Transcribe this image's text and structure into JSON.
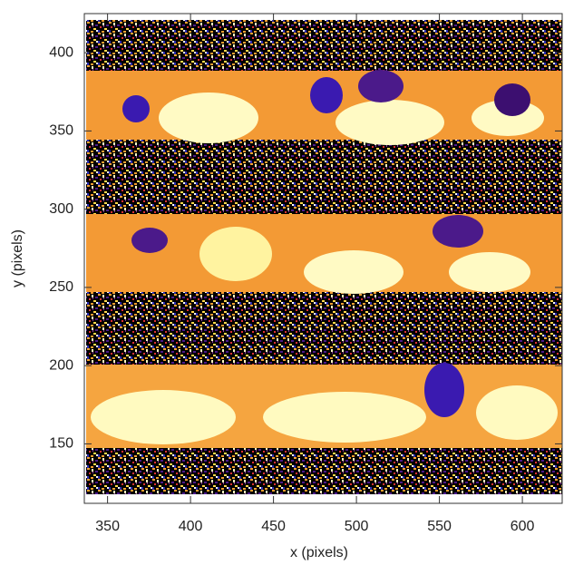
{
  "chart_data": {
    "type": "image",
    "xlabel": "x (pixels)",
    "ylabel": "y (pixels)",
    "xlim": [
      336,
      624
    ],
    "ylim": [
      112,
      425
    ],
    "xticks": [
      350,
      400,
      450,
      500,
      550,
      600
    ],
    "yticks": [
      150,
      200,
      250,
      300,
      350,
      400
    ]
  }
}
